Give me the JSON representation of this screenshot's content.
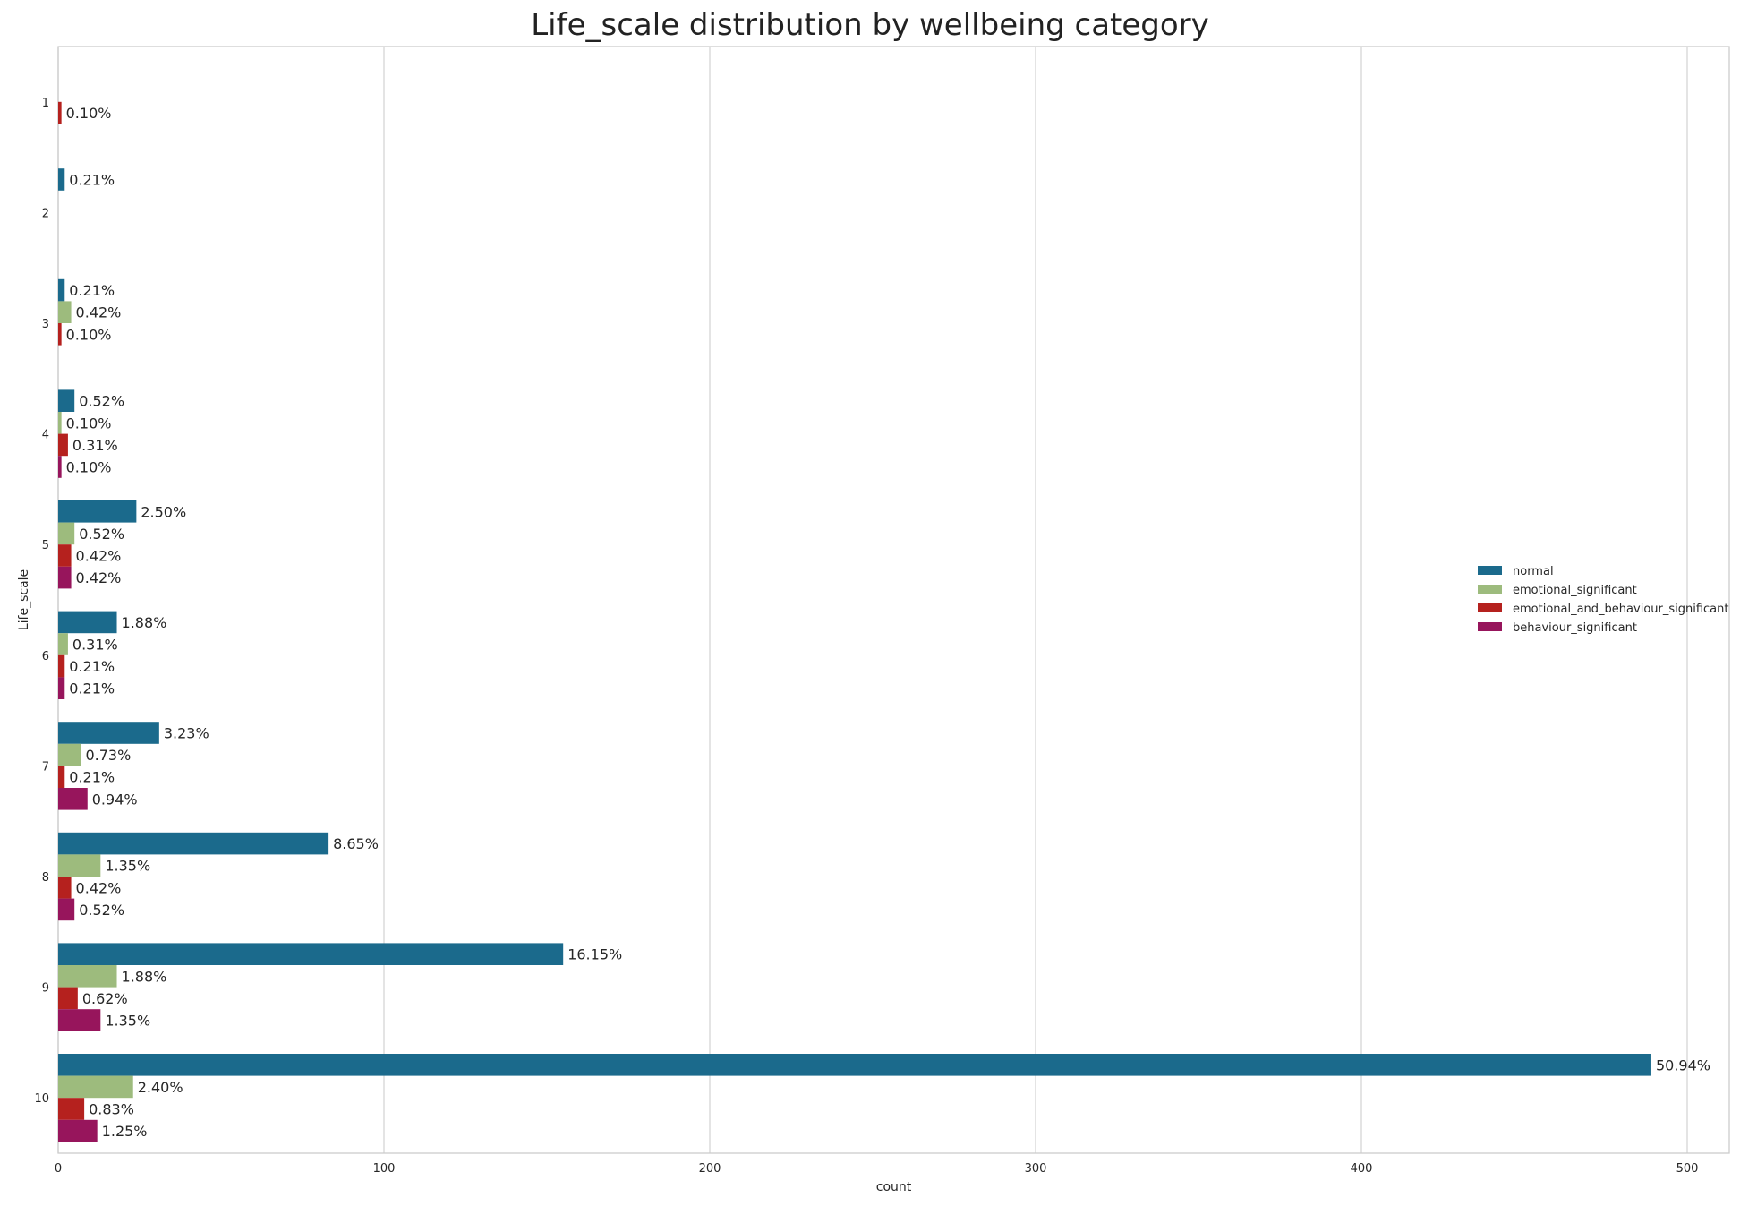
{
  "chart_data": {
    "type": "bar",
    "orientation": "horizontal",
    "title": "Life_scale distribution by wellbeing category",
    "xlabel": "count",
    "ylabel": "Life_scale",
    "xlim": [
      0,
      515
    ],
    "xticks": [
      0,
      100,
      200,
      300,
      400,
      500
    ],
    "grid": true,
    "legend_position": "right",
    "categories": [
      "1",
      "2",
      "3",
      "4",
      "5",
      "6",
      "7",
      "8",
      "9",
      "10"
    ],
    "series": [
      {
        "name": "normal",
        "color": "#1b6a8c",
        "values": [
          0,
          2,
          2,
          5,
          24,
          18,
          31,
          83,
          155,
          489
        ],
        "labels": [
          null,
          "0.21%",
          "0.21%",
          "0.52%",
          "2.50%",
          "1.88%",
          "3.23%",
          "8.65%",
          "16.15%",
          "50.94%"
        ]
      },
      {
        "name": "emotional_significant",
        "color": "#9dbb7d",
        "values": [
          0,
          0,
          4,
          1,
          5,
          3,
          7,
          13,
          18,
          23
        ],
        "labels": [
          null,
          null,
          "0.42%",
          "0.10%",
          "0.52%",
          "0.31%",
          "0.73%",
          "1.35%",
          "1.88%",
          "2.40%"
        ]
      },
      {
        "name": "emotional_and_behaviour_significant",
        "color": "#b5211e",
        "values": [
          1,
          0,
          1,
          3,
          4,
          2,
          2,
          4,
          6,
          8
        ],
        "labels": [
          "0.10%",
          null,
          "0.10%",
          "0.31%",
          "0.42%",
          "0.21%",
          "0.21%",
          "0.42%",
          "0.62%",
          "0.83%"
        ]
      },
      {
        "name": "behaviour_significant",
        "color": "#97155c",
        "values": [
          0,
          0,
          0,
          1,
          4,
          2,
          9,
          5,
          13,
          12
        ],
        "labels": [
          null,
          null,
          null,
          "0.10%",
          "0.42%",
          "0.21%",
          "0.94%",
          "0.52%",
          "1.35%",
          "1.25%"
        ]
      }
    ]
  }
}
